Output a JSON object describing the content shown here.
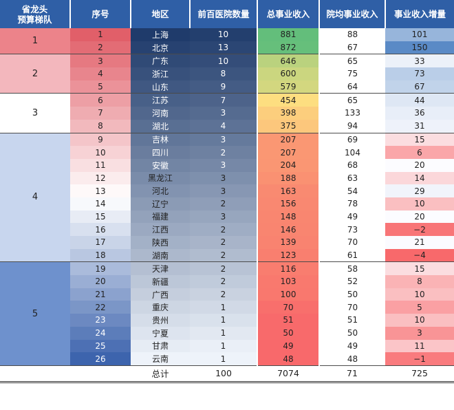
{
  "headers": [
    "省龙头\n预算梯队",
    "序号",
    "地区",
    "前百医院数量",
    "总事业收入",
    "院均事业收入",
    "事业收入增量"
  ],
  "tiers": [
    {
      "label": "1",
      "rows": 2,
      "color": "#ec838a"
    },
    {
      "label": "2",
      "rows": 3,
      "color": "#f3b7bd"
    },
    {
      "label": "3",
      "rows": 3,
      "color": "#ffffff"
    },
    {
      "label": "4",
      "rows": 10,
      "color": "#c8d6ee"
    },
    {
      "label": "5",
      "rows": 8,
      "color": "#6e91cd"
    }
  ],
  "rows": [
    {
      "index": "1",
      "region": "上海",
      "count": "10",
      "total": "881",
      "avg": "88",
      "incr": "101"
    },
    {
      "index": "2",
      "region": "北京",
      "count": "13",
      "total": "872",
      "avg": "67",
      "incr": "150"
    },
    {
      "index": "3",
      "region": "广东",
      "count": "10",
      "total": "646",
      "avg": "65",
      "incr": "33"
    },
    {
      "index": "4",
      "region": "浙江",
      "count": "8",
      "total": "600",
      "avg": "75",
      "incr": "73"
    },
    {
      "index": "5",
      "region": "山东",
      "count": "9",
      "total": "579",
      "avg": "64",
      "incr": "67"
    },
    {
      "index": "6",
      "region": "江苏",
      "count": "7",
      "total": "454",
      "avg": "65",
      "incr": "44"
    },
    {
      "index": "7",
      "region": "河南",
      "count": "3",
      "total": "398",
      "avg": "133",
      "incr": "36"
    },
    {
      "index": "8",
      "region": "湖北",
      "count": "4",
      "total": "375",
      "avg": "94",
      "incr": "31"
    },
    {
      "index": "9",
      "region": "吉林",
      "count": "3",
      "total": "207",
      "avg": "69",
      "incr": "15"
    },
    {
      "index": "10",
      "region": "四川",
      "count": "2",
      "total": "207",
      "avg": "104",
      "incr": "6"
    },
    {
      "index": "11",
      "region": "安徽",
      "count": "3",
      "total": "204",
      "avg": "68",
      "incr": "20"
    },
    {
      "index": "12",
      "region": "黑龙江",
      "count": "3",
      "total": "188",
      "avg": "63",
      "incr": "14"
    },
    {
      "index": "13",
      "region": "河北",
      "count": "3",
      "total": "163",
      "avg": "54",
      "incr": "29"
    },
    {
      "index": "14",
      "region": "辽宁",
      "count": "2",
      "total": "156",
      "avg": "78",
      "incr": "10"
    },
    {
      "index": "15",
      "region": "福建",
      "count": "3",
      "total": "148",
      "avg": "49",
      "incr": "20"
    },
    {
      "index": "16",
      "region": "江西",
      "count": "2",
      "total": "146",
      "avg": "73",
      "incr": "−2"
    },
    {
      "index": "17",
      "region": "陕西",
      "count": "2",
      "total": "139",
      "avg": "70",
      "incr": "21"
    },
    {
      "index": "18",
      "region": "湖南",
      "count": "2",
      "total": "123",
      "avg": "61",
      "incr": "−4"
    },
    {
      "index": "19",
      "region": "天津",
      "count": "2",
      "total": "116",
      "avg": "58",
      "incr": "15"
    },
    {
      "index": "20",
      "region": "新疆",
      "count": "2",
      "total": "103",
      "avg": "52",
      "incr": "8"
    },
    {
      "index": "21",
      "region": "广西",
      "count": "2",
      "total": "100",
      "avg": "50",
      "incr": "10"
    },
    {
      "index": "22",
      "region": "重庆",
      "count": "1",
      "total": "70",
      "avg": "70",
      "incr": "5"
    },
    {
      "index": "23",
      "region": "贵州",
      "count": "1",
      "total": "51",
      "avg": "51",
      "incr": "10"
    },
    {
      "index": "24",
      "region": "宁夏",
      "count": "1",
      "total": "50",
      "avg": "50",
      "incr": "3"
    },
    {
      "index": "25",
      "region": "甘肃",
      "count": "1",
      "total": "49",
      "avg": "49",
      "incr": "11"
    },
    {
      "index": "26",
      "region": "云南",
      "count": "1",
      "total": "48",
      "avg": "48",
      "incr": "−1"
    }
  ],
  "totals": {
    "label": "总计",
    "count": "100",
    "total": "7074",
    "avg": "71",
    "incr": "725"
  },
  "colors": {
    "header": "#2f5fa6",
    "index_high": "#e15f69",
    "index_low": "#3d64ad",
    "region_high": "#1f3b6b",
    "region_low": "#eef3fa",
    "total_green": "#63be7b",
    "total_yellow": "#fde181",
    "total_red": "#f8696b",
    "incr_blue": "#5a8ac6",
    "incr_white": "#fcfcff",
    "incr_red": "#f8696b"
  }
}
